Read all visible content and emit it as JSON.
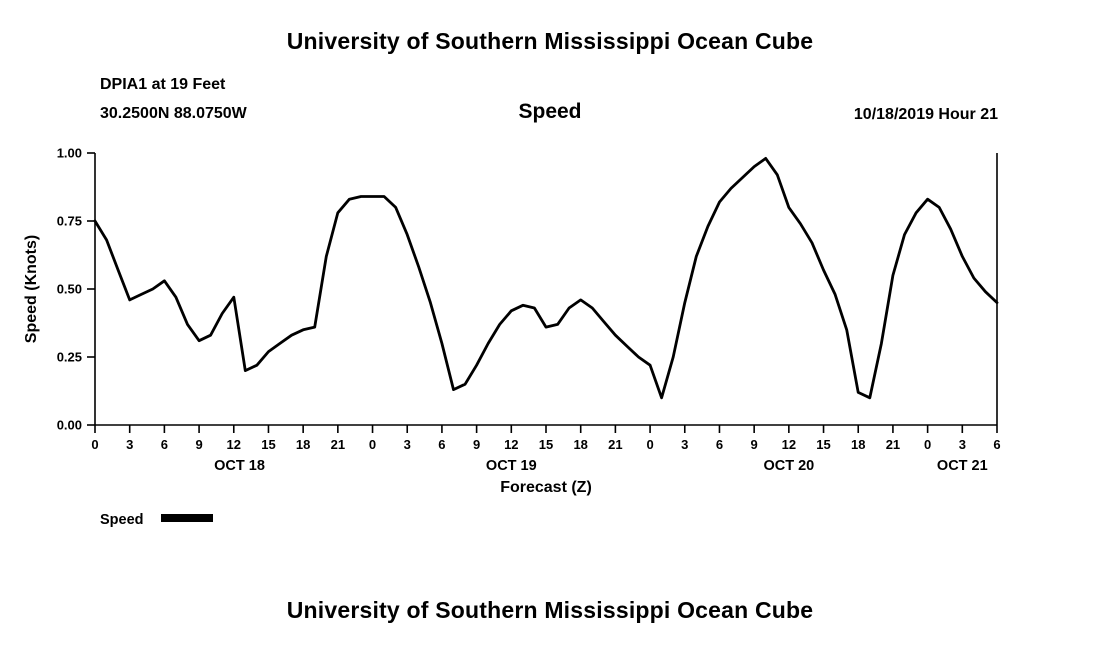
{
  "header": {
    "title": "University of Southern Mississippi Ocean Cube",
    "station": "DPIA1 at 19 Feet",
    "coordinates": "30.2500N 88.0750W",
    "subtitle": "Speed",
    "datetime": "10/18/2019 Hour 21"
  },
  "footer": {
    "title": "University of Southern Mississippi Ocean Cube"
  },
  "legend": {
    "label": "Speed"
  },
  "colors": {
    "line": "#000000",
    "text": "#000000",
    "background": "#ffffff"
  },
  "chart_data": {
    "type": "line",
    "title": "Speed",
    "xlabel": "Forecast (Z)",
    "ylabel": "Speed (Knots)",
    "ylim": [
      0,
      1
    ],
    "xlim_hours": [
      0,
      78
    ],
    "x_start_hour": 0,
    "x_step_hours": 1,
    "grid": false,
    "legend_position": "bottom-left",
    "y_ticks": {
      "values": [
        0,
        0.25,
        0.5,
        0.75,
        1.0
      ],
      "labels": [
        "0.00",
        "0.25",
        "0.50",
        "0.75",
        "1.00"
      ]
    },
    "x_ticks": {
      "hours": [
        0,
        3,
        6,
        9,
        12,
        15,
        18,
        21,
        24,
        27,
        30,
        33,
        36,
        39,
        42,
        45,
        48,
        51,
        54,
        57,
        60,
        63,
        66,
        69,
        72,
        75,
        78
      ],
      "labels": [
        "0",
        "3",
        "6",
        "9",
        "12",
        "15",
        "18",
        "21",
        "0",
        "3",
        "6",
        "9",
        "12",
        "15",
        "18",
        "21",
        "0",
        "3",
        "6",
        "9",
        "12",
        "15",
        "18",
        "21",
        "0",
        "3",
        "6"
      ]
    },
    "day_labels": [
      {
        "label": "OCT 18",
        "hour": 12.5
      },
      {
        "label": "OCT 19",
        "hour": 36
      },
      {
        "label": "OCT 20",
        "hour": 60
      },
      {
        "label": "OCT 21",
        "hour": 75
      }
    ],
    "series": [
      {
        "name": "Speed",
        "values": [
          0.75,
          0.68,
          0.57,
          0.46,
          0.48,
          0.5,
          0.53,
          0.47,
          0.37,
          0.31,
          0.33,
          0.41,
          0.47,
          0.2,
          0.22,
          0.27,
          0.3,
          0.33,
          0.35,
          0.36,
          0.62,
          0.78,
          0.83,
          0.84,
          0.84,
          0.84,
          0.8,
          0.7,
          0.58,
          0.45,
          0.3,
          0.13,
          0.15,
          0.22,
          0.3,
          0.37,
          0.42,
          0.44,
          0.43,
          0.36,
          0.37,
          0.43,
          0.46,
          0.43,
          0.38,
          0.33,
          0.29,
          0.25,
          0.22,
          0.1,
          0.25,
          0.45,
          0.62,
          0.73,
          0.82,
          0.87,
          0.91,
          0.95,
          0.98,
          0.92,
          0.8,
          0.74,
          0.67,
          0.57,
          0.48,
          0.35,
          0.12,
          0.1,
          0.3,
          0.55,
          0.7,
          0.78,
          0.83,
          0.8,
          0.72,
          0.62,
          0.54,
          0.49,
          0.45
        ]
      }
    ]
  }
}
